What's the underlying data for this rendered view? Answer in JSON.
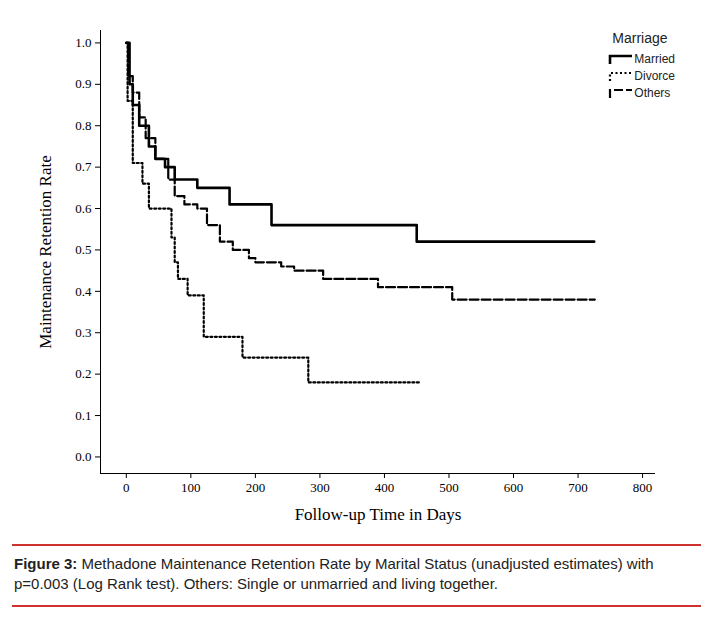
{
  "chart_data": {
    "type": "line",
    "x_label": "Follow-up Time in Days",
    "y_label": "Maintenance Retention Rate",
    "legend_title": "Marriage",
    "legend": "top-right",
    "figure_label": "Figure 3:",
    "caption": "Methadone Maintenance Retention Rate by Marital Status (unadjusted estimates) with p=0.003 (Log Rank test). Others: Single or unmarried and living together.",
    "xlim": [
      -40,
      820
    ],
    "ylim": [
      -0.04,
      1.03
    ],
    "xticks": [
      0,
      100,
      200,
      300,
      400,
      500,
      600,
      700,
      800
    ],
    "yticks": [
      {
        "value": 0,
        "label": "0.0"
      },
      0.1,
      0.2,
      0.3,
      0.4,
      0.5,
      0.6,
      0.7,
      0.8,
      0.9,
      {
        "value": 1,
        "label": "1.0"
      }
    ],
    "series": [
      {
        "name": "Married",
        "color": "#000000",
        "line_style": "solid",
        "x": [
          0,
          5,
          10,
          20,
          35,
          45,
          60,
          75,
          110,
          160,
          225,
          450,
          725
        ],
        "values": [
          1.0,
          0.9,
          0.85,
          0.8,
          0.75,
          0.72,
          0.7,
          0.67,
          0.65,
          0.61,
          0.56,
          0.52,
          0.52
        ]
      },
      {
        "name": "Divorce",
        "color": "#000000",
        "line_style": "dotted",
        "x": [
          0,
          2,
          10,
          25,
          35,
          65,
          70,
          75,
          80,
          95,
          120,
          180,
          282,
          457
        ],
        "values": [
          1.0,
          0.86,
          0.71,
          0.66,
          0.6,
          0.6,
          0.53,
          0.47,
          0.43,
          0.39,
          0.29,
          0.24,
          0.18,
          0.18
        ]
      },
      {
        "name": "Others",
        "color": "#000000",
        "line_style": "dashed",
        "x": [
          0,
          3,
          10,
          20,
          30,
          45,
          65,
          75,
          90,
          110,
          125,
          145,
          165,
          190,
          200,
          240,
          260,
          305,
          390,
          505,
          726
        ],
        "values": [
          1.0,
          0.92,
          0.88,
          0.82,
          0.77,
          0.72,
          0.67,
          0.63,
          0.61,
          0.6,
          0.56,
          0.52,
          0.5,
          0.48,
          0.47,
          0.46,
          0.45,
          0.43,
          0.41,
          0.38,
          0.38
        ]
      }
    ]
  }
}
